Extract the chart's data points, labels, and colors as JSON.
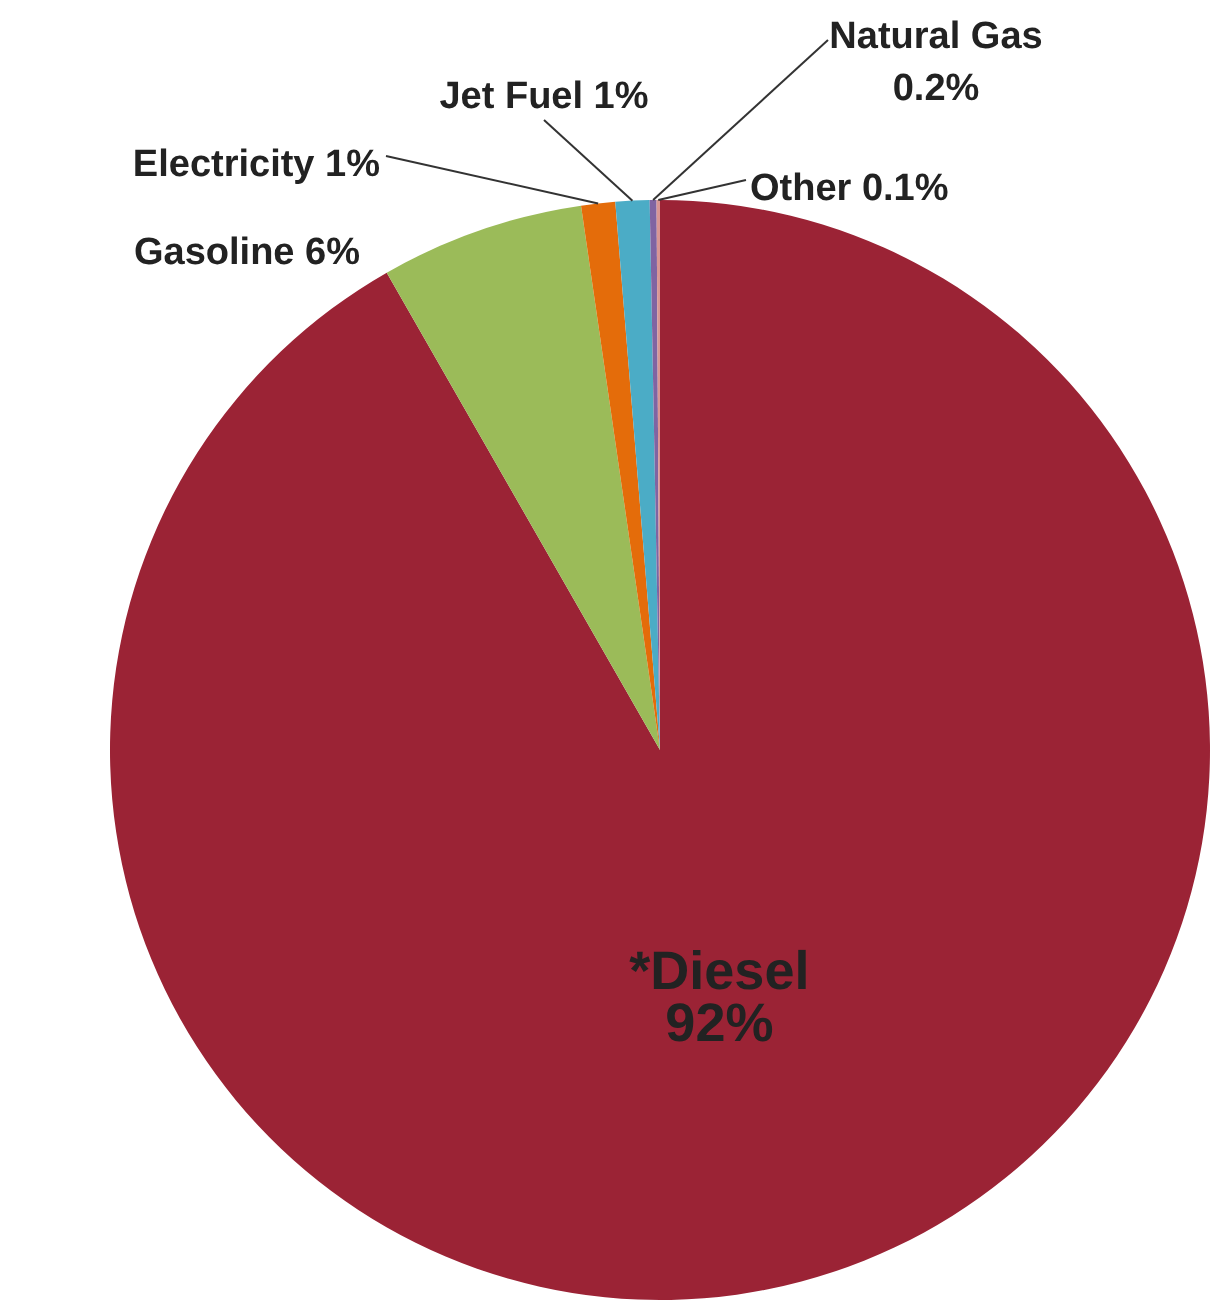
{
  "chart_data": {
    "type": "pie",
    "categories": [
      "*Diesel",
      "Gasoline",
      "Electricity",
      "Jet Fuel",
      "Natural Gas",
      "Other"
    ],
    "values": [
      92,
      6,
      1,
      1,
      0.2,
      0.1
    ],
    "value_labels": [
      "92%",
      "6%",
      "1%",
      "1%",
      "0.2%",
      "0.1%"
    ],
    "colors": [
      "#9b2335",
      "#9bbb59",
      "#e46c0a",
      "#4bacc6",
      "#8064a2",
      "#d99694"
    ]
  }
}
